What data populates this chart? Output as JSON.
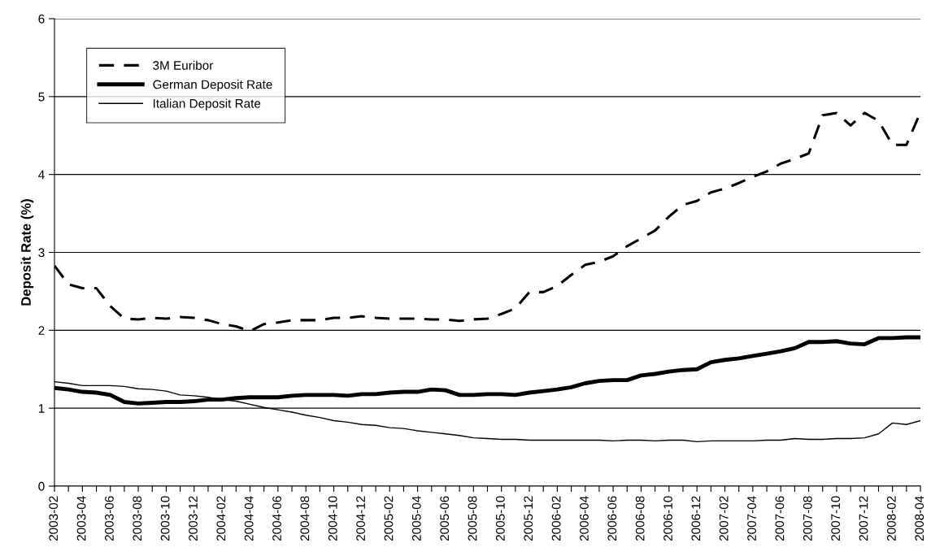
{
  "chart_data": {
    "type": "line",
    "ylabel": "Deposit Rate (%)",
    "categories": [
      "2003-02",
      null,
      "2003-04",
      null,
      "2003-06",
      null,
      "2003-08",
      null,
      "2003-10",
      null,
      "2003-12",
      null,
      "2004-02",
      null,
      "2004-04",
      null,
      "2004-06",
      null,
      "2004-08",
      null,
      "2004-10",
      null,
      "2004-12",
      null,
      "2005-02",
      null,
      "2005-04",
      null,
      "2005-06",
      null,
      "2005-08",
      null,
      "2005-10",
      null,
      "2005-12",
      null,
      "2006-02",
      null,
      "2006-04",
      null,
      "2006-06",
      null,
      "2006-08",
      null,
      "2006-10",
      null,
      "2006-12",
      null,
      "2007-02",
      null,
      "2007-04",
      null,
      "2007-06",
      null,
      "2007-08",
      null,
      "2007-10",
      null,
      "2007-12",
      null,
      "2008-02",
      null,
      "2008-04"
    ],
    "series": [
      {
        "name": "3M Euribor",
        "color": "#000000",
        "line_style": "dashed",
        "values": [
          2.83,
          2.59,
          2.54,
          2.54,
          2.31,
          2.15,
          2.14,
          2.16,
          2.15,
          2.17,
          2.16,
          2.13,
          2.08,
          2.05,
          1.99,
          2.08,
          2.1,
          2.13,
          2.13,
          2.13,
          2.16,
          2.16,
          2.18,
          2.16,
          2.15,
          2.15,
          2.15,
          2.14,
          2.14,
          2.12,
          2.14,
          2.15,
          2.21,
          2.28,
          2.49,
          2.49,
          2.57,
          2.71,
          2.84,
          2.88,
          2.95,
          3.08,
          3.18,
          3.28,
          3.46,
          3.61,
          3.66,
          3.77,
          3.82,
          3.89,
          3.97,
          4.04,
          4.14,
          4.2,
          4.27,
          4.76,
          4.79,
          4.63,
          4.79,
          4.69,
          4.38,
          4.38,
          4.8
        ]
      },
      {
        "name": "German Deposit Rate",
        "color": "#000000",
        "line_style": "solid",
        "values": [
          1.26,
          1.24,
          1.21,
          1.2,
          1.17,
          1.08,
          1.06,
          1.07,
          1.08,
          1.08,
          1.09,
          1.11,
          1.11,
          1.13,
          1.14,
          1.14,
          1.14,
          1.16,
          1.17,
          1.17,
          1.17,
          1.16,
          1.18,
          1.18,
          1.2,
          1.21,
          1.21,
          1.24,
          1.23,
          1.17,
          1.17,
          1.18,
          1.18,
          1.17,
          1.2,
          1.22,
          1.24,
          1.27,
          1.32,
          1.35,
          1.36,
          1.36,
          1.42,
          1.44,
          1.47,
          1.49,
          1.5,
          1.59,
          1.62,
          1.64,
          1.67,
          1.7,
          1.73,
          1.77,
          1.85,
          1.85,
          1.86,
          1.83,
          1.82,
          1.9,
          1.9,
          1.91,
          1.91
        ]
      },
      {
        "name": "Italian Deposit Rate",
        "color": "#000000",
        "line_style": "solid",
        "values": [
          1.34,
          1.32,
          1.29,
          1.29,
          1.29,
          1.28,
          1.25,
          1.24,
          1.22,
          1.17,
          1.16,
          1.14,
          1.11,
          1.09,
          1.05,
          1.01,
          0.98,
          0.95,
          0.91,
          0.88,
          0.84,
          0.82,
          0.79,
          0.78,
          0.75,
          0.74,
          0.71,
          0.69,
          0.67,
          0.65,
          0.62,
          0.61,
          0.6,
          0.6,
          0.59,
          0.59,
          0.59,
          0.59,
          0.59,
          0.59,
          0.58,
          0.59,
          0.59,
          0.58,
          0.59,
          0.59,
          0.57,
          0.58,
          0.58,
          0.58,
          0.58,
          0.59,
          0.59,
          0.61,
          0.6,
          0.6,
          0.61,
          0.61,
          0.62,
          0.67,
          0.81,
          0.79,
          0.84
        ]
      }
    ],
    "ylim": [
      0,
      6
    ],
    "yticks": [
      0,
      1,
      2,
      3,
      4,
      5,
      6
    ],
    "grid": "y",
    "legend": "top left"
  }
}
